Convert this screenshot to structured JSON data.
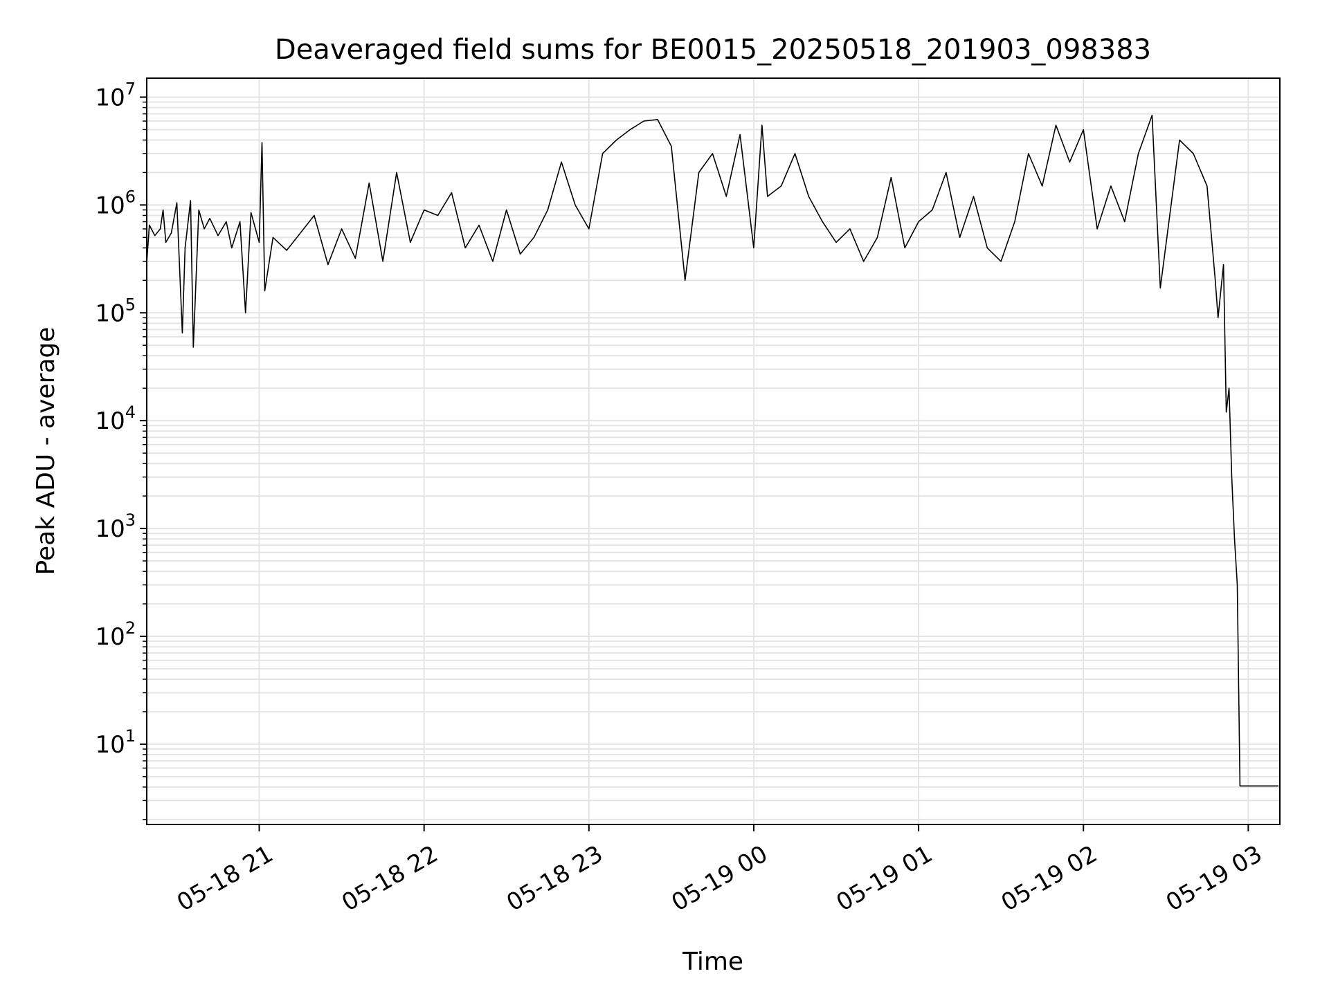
{
  "chart_data": {
    "type": "line",
    "title": "Deaveraged field sums for BE0015_20250518_201903_098383",
    "xlabel": "Time",
    "ylabel": "Peak ADU - average",
    "yscale": "log",
    "ylim": [
      1.8,
      15000000
    ],
    "xlim": [
      "2025-05-18 20:19:03",
      "2025-05-19 03:11:30"
    ],
    "grid": true,
    "legend": "none",
    "line_color": "#000000",
    "x_ticks": [
      {
        "time": "2025-05-18 21:00",
        "label": "05-18 21"
      },
      {
        "time": "2025-05-18 22:00",
        "label": "05-18 22"
      },
      {
        "time": "2025-05-18 23:00",
        "label": "05-18 23"
      },
      {
        "time": "2025-05-19 00:00",
        "label": "05-19 00"
      },
      {
        "time": "2025-05-19 01:00",
        "label": "05-19 01"
      },
      {
        "time": "2025-05-19 02:00",
        "label": "05-19 02"
      },
      {
        "time": "2025-05-19 03:00",
        "label": "05-19 03"
      }
    ],
    "y_ticks": [
      {
        "value": 10,
        "base": "10",
        "exp": "1"
      },
      {
        "value": 100,
        "base": "10",
        "exp": "2"
      },
      {
        "value": 1000,
        "base": "10",
        "exp": "3"
      },
      {
        "value": 10000,
        "base": "10",
        "exp": "4"
      },
      {
        "value": 100000,
        "base": "10",
        "exp": "5"
      },
      {
        "value": 1000000,
        "base": "10",
        "exp": "6"
      },
      {
        "value": 10000000,
        "base": "10",
        "exp": "7"
      }
    ],
    "series": [
      {
        "points": [
          [
            "2025-05-18 20:19",
            280000
          ],
          [
            "2025-05-18 20:20",
            650000
          ],
          [
            "2025-05-18 20:22",
            520000
          ],
          [
            "2025-05-18 20:24",
            600000
          ],
          [
            "2025-05-18 20:25",
            900000
          ],
          [
            "2025-05-18 20:26",
            450000
          ],
          [
            "2025-05-18 20:28",
            550000
          ],
          [
            "2025-05-18 20:30",
            1050000
          ],
          [
            "2025-05-18 20:32",
            65000
          ],
          [
            "2025-05-18 20:33",
            400000
          ],
          [
            "2025-05-18 20:35",
            1100000
          ],
          [
            "2025-05-18 20:36",
            48000
          ],
          [
            "2025-05-18 20:38",
            900000
          ],
          [
            "2025-05-18 20:40",
            600000
          ],
          [
            "2025-05-18 20:42",
            750000
          ],
          [
            "2025-05-18 20:45",
            520000
          ],
          [
            "2025-05-18 20:48",
            700000
          ],
          [
            "2025-05-18 20:50",
            400000
          ],
          [
            "2025-05-18 20:53",
            700000
          ],
          [
            "2025-05-18 20:55",
            100000
          ],
          [
            "2025-05-18 20:57",
            850000
          ],
          [
            "2025-05-18 21:00",
            450000
          ],
          [
            "2025-05-18 21:01",
            3800000
          ],
          [
            "2025-05-18 21:02",
            160000
          ],
          [
            "2025-05-18 21:05",
            500000
          ],
          [
            "2025-05-18 21:10",
            380000
          ],
          [
            "2025-05-18 21:15",
            550000
          ],
          [
            "2025-05-18 21:20",
            800000
          ],
          [
            "2025-05-18 21:25",
            280000
          ],
          [
            "2025-05-18 21:30",
            600000
          ],
          [
            "2025-05-18 21:35",
            320000
          ],
          [
            "2025-05-18 21:40",
            1600000
          ],
          [
            "2025-05-18 21:45",
            300000
          ],
          [
            "2025-05-18 21:50",
            2000000
          ],
          [
            "2025-05-18 21:55",
            450000
          ],
          [
            "2025-05-18 22:00",
            900000
          ],
          [
            "2025-05-18 22:05",
            800000
          ],
          [
            "2025-05-18 22:10",
            1300000
          ],
          [
            "2025-05-18 22:15",
            400000
          ],
          [
            "2025-05-18 22:20",
            650000
          ],
          [
            "2025-05-18 22:25",
            300000
          ],
          [
            "2025-05-18 22:30",
            900000
          ],
          [
            "2025-05-18 22:35",
            350000
          ],
          [
            "2025-05-18 22:40",
            500000
          ],
          [
            "2025-05-18 22:45",
            900000
          ],
          [
            "2025-05-18 22:50",
            2500000
          ],
          [
            "2025-05-18 22:55",
            1000000
          ],
          [
            "2025-05-18 23:00",
            600000
          ],
          [
            "2025-05-18 23:05",
            3000000
          ],
          [
            "2025-05-18 23:10",
            4000000
          ],
          [
            "2025-05-18 23:15",
            5000000
          ],
          [
            "2025-05-18 23:20",
            6000000
          ],
          [
            "2025-05-18 23:25",
            6200000
          ],
          [
            "2025-05-18 23:30",
            3500000
          ],
          [
            "2025-05-18 23:35",
            200000
          ],
          [
            "2025-05-18 23:40",
            2000000
          ],
          [
            "2025-05-18 23:45",
            3000000
          ],
          [
            "2025-05-18 23:50",
            1200000
          ],
          [
            "2025-05-18 23:55",
            4500000
          ],
          [
            "2025-05-19 00:00",
            400000
          ],
          [
            "2025-05-19 00:03",
            5500000
          ],
          [
            "2025-05-19 00:05",
            1200000
          ],
          [
            "2025-05-19 00:10",
            1500000
          ],
          [
            "2025-05-19 00:15",
            3000000
          ],
          [
            "2025-05-19 00:20",
            1200000
          ],
          [
            "2025-05-19 00:25",
            700000
          ],
          [
            "2025-05-19 00:30",
            450000
          ],
          [
            "2025-05-19 00:35",
            600000
          ],
          [
            "2025-05-19 00:40",
            300000
          ],
          [
            "2025-05-19 00:45",
            500000
          ],
          [
            "2025-05-19 00:50",
            1800000
          ],
          [
            "2025-05-19 00:55",
            400000
          ],
          [
            "2025-05-19 01:00",
            700000
          ],
          [
            "2025-05-19 01:05",
            900000
          ],
          [
            "2025-05-19 01:10",
            2000000
          ],
          [
            "2025-05-19 01:15",
            500000
          ],
          [
            "2025-05-19 01:20",
            1200000
          ],
          [
            "2025-05-19 01:25",
            400000
          ],
          [
            "2025-05-19 01:30",
            300000
          ],
          [
            "2025-05-19 01:35",
            700000
          ],
          [
            "2025-05-19 01:40",
            3000000
          ],
          [
            "2025-05-19 01:45",
            1500000
          ],
          [
            "2025-05-19 01:50",
            5500000
          ],
          [
            "2025-05-19 01:55",
            2500000
          ],
          [
            "2025-05-19 02:00",
            5000000
          ],
          [
            "2025-05-19 02:05",
            600000
          ],
          [
            "2025-05-19 02:10",
            1500000
          ],
          [
            "2025-05-19 02:15",
            700000
          ],
          [
            "2025-05-19 02:20",
            3000000
          ],
          [
            "2025-05-19 02:25",
            6800000
          ],
          [
            "2025-05-19 02:28",
            170000
          ],
          [
            "2025-05-19 02:35",
            4000000
          ],
          [
            "2025-05-19 02:40",
            3000000
          ],
          [
            "2025-05-19 02:45",
            1500000
          ],
          [
            "2025-05-19 02:48",
            200000
          ],
          [
            "2025-05-19 02:49",
            90000
          ],
          [
            "2025-05-19 02:51",
            280000
          ],
          [
            "2025-05-19 02:52",
            12000
          ],
          [
            "2025-05-19 02:53",
            20000
          ],
          [
            "2025-05-19 02:54",
            3000
          ],
          [
            "2025-05-19 02:55",
            800
          ],
          [
            "2025-05-19 02:56",
            300
          ],
          [
            "2025-05-19 02:57",
            4.1
          ],
          [
            "2025-05-19 03:11",
            4.1
          ]
        ]
      }
    ]
  }
}
